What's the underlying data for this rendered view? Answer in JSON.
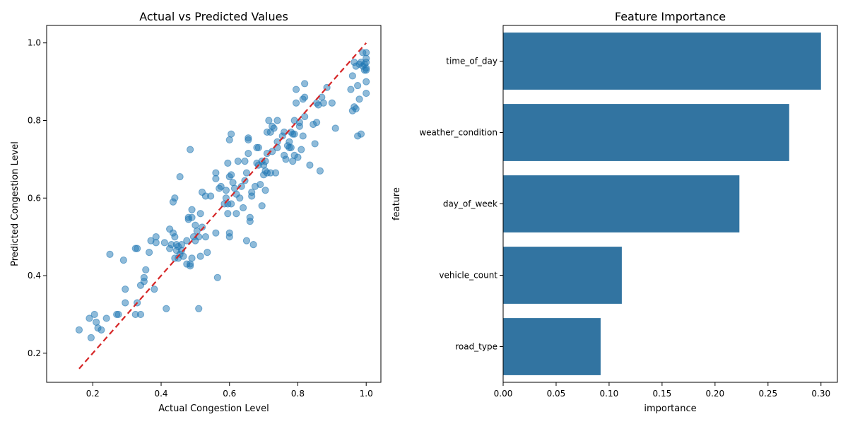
{
  "chart_data": [
    {
      "type": "scatter",
      "title": "Actual vs Predicted Values",
      "xlabel": "Actual Congestion Level",
      "ylabel": "Predicted Congestion Level",
      "xlim": [
        0.065,
        1.043
      ],
      "ylim": [
        0.125,
        1.045
      ],
      "xticks": [
        "0.2",
        "0.4",
        "0.6",
        "0.8",
        "1.0"
      ],
      "yticks": [
        "0.2",
        "0.4",
        "0.6",
        "0.8",
        "1.0"
      ],
      "grid": false,
      "point_color": "#1f77b4",
      "reference_line": {
        "x": [
          0.16,
          1.0
        ],
        "y": [
          0.16,
          1.0
        ],
        "color": "#d62728",
        "style": "dashed"
      },
      "points": [
        [
          0.16,
          0.26
        ],
        [
          0.19,
          0.29
        ],
        [
          0.195,
          0.24
        ],
        [
          0.205,
          0.3
        ],
        [
          0.21,
          0.28
        ],
        [
          0.215,
          0.265
        ],
        [
          0.225,
          0.26
        ],
        [
          0.24,
          0.29
        ],
        [
          0.25,
          0.455
        ],
        [
          0.27,
          0.3
        ],
        [
          0.275,
          0.3
        ],
        [
          0.29,
          0.44
        ],
        [
          0.295,
          0.365
        ],
        [
          0.295,
          0.33
        ],
        [
          0.325,
          0.47
        ],
        [
          0.33,
          0.47
        ],
        [
          0.33,
          0.33
        ],
        [
          0.325,
          0.3
        ],
        [
          0.34,
          0.3
        ],
        [
          0.34,
          0.375
        ],
        [
          0.35,
          0.395
        ],
        [
          0.35,
          0.385
        ],
        [
          0.355,
          0.415
        ],
        [
          0.365,
          0.46
        ],
        [
          0.37,
          0.49
        ],
        [
          0.38,
          0.365
        ],
        [
          0.385,
          0.5
        ],
        [
          0.385,
          0.485
        ],
        [
          0.41,
          0.485
        ],
        [
          0.415,
          0.315
        ],
        [
          0.425,
          0.52
        ],
        [
          0.425,
          0.47
        ],
        [
          0.43,
          0.48
        ],
        [
          0.435,
          0.59
        ],
        [
          0.435,
          0.51
        ],
        [
          0.44,
          0.6
        ],
        [
          0.44,
          0.5
        ],
        [
          0.44,
          0.445
        ],
        [
          0.445,
          0.48
        ],
        [
          0.445,
          0.465
        ],
        [
          0.45,
          0.475
        ],
        [
          0.45,
          0.445
        ],
        [
          0.455,
          0.655
        ],
        [
          0.455,
          0.455
        ],
        [
          0.46,
          0.48
        ],
        [
          0.46,
          0.465
        ],
        [
          0.465,
          0.45
        ],
        [
          0.475,
          0.49
        ],
        [
          0.475,
          0.43
        ],
        [
          0.48,
          0.55
        ],
        [
          0.48,
          0.545
        ],
        [
          0.485,
          0.725
        ],
        [
          0.485,
          0.43
        ],
        [
          0.485,
          0.425
        ],
        [
          0.49,
          0.57
        ],
        [
          0.49,
          0.55
        ],
        [
          0.49,
          0.445
        ],
        [
          0.495,
          0.5
        ],
        [
          0.5,
          0.53
        ],
        [
          0.5,
          0.49
        ],
        [
          0.505,
          0.515
        ],
        [
          0.51,
          0.5
        ],
        [
          0.51,
          0.315
        ],
        [
          0.515,
          0.56
        ],
        [
          0.515,
          0.45
        ],
        [
          0.52,
          0.615
        ],
        [
          0.52,
          0.525
        ],
        [
          0.53,
          0.605
        ],
        [
          0.53,
          0.5
        ],
        [
          0.535,
          0.46
        ],
        [
          0.545,
          0.605
        ],
        [
          0.56,
          0.665
        ],
        [
          0.56,
          0.65
        ],
        [
          0.56,
          0.51
        ],
        [
          0.565,
          0.395
        ],
        [
          0.57,
          0.625
        ],
        [
          0.575,
          0.63
        ],
        [
          0.585,
          0.585
        ],
        [
          0.59,
          0.62
        ],
        [
          0.59,
          0.6
        ],
        [
          0.595,
          0.69
        ],
        [
          0.595,
          0.56
        ],
        [
          0.595,
          0.585
        ],
        [
          0.6,
          0.75
        ],
        [
          0.6,
          0.655
        ],
        [
          0.6,
          0.51
        ],
        [
          0.6,
          0.5
        ],
        [
          0.605,
          0.765
        ],
        [
          0.605,
          0.66
        ],
        [
          0.605,
          0.585
        ],
        [
          0.61,
          0.64
        ],
        [
          0.615,
          0.625
        ],
        [
          0.62,
          0.61
        ],
        [
          0.62,
          0.56
        ],
        [
          0.625,
          0.695
        ],
        [
          0.63,
          0.6
        ],
        [
          0.635,
          0.63
        ],
        [
          0.64,
          0.575
        ],
        [
          0.645,
          0.695
        ],
        [
          0.645,
          0.645
        ],
        [
          0.65,
          0.665
        ],
        [
          0.65,
          0.49
        ],
        [
          0.655,
          0.755
        ],
        [
          0.655,
          0.75
        ],
        [
          0.655,
          0.715
        ],
        [
          0.66,
          0.55
        ],
        [
          0.66,
          0.54
        ],
        [
          0.665,
          0.615
        ],
        [
          0.665,
          0.605
        ],
        [
          0.67,
          0.48
        ],
        [
          0.675,
          0.63
        ],
        [
          0.68,
          0.73
        ],
        [
          0.68,
          0.69
        ],
        [
          0.685,
          0.685
        ],
        [
          0.685,
          0.73
        ],
        [
          0.69,
          0.635
        ],
        [
          0.695,
          0.695
        ],
        [
          0.695,
          0.58
        ],
        [
          0.7,
          0.66
        ],
        [
          0.7,
          0.685
        ],
        [
          0.705,
          0.62
        ],
        [
          0.705,
          0.67
        ],
        [
          0.705,
          0.695
        ],
        [
          0.71,
          0.77
        ],
        [
          0.71,
          0.715
        ],
        [
          0.71,
          0.665
        ],
        [
          0.715,
          0.8
        ],
        [
          0.72,
          0.77
        ],
        [
          0.72,
          0.665
        ],
        [
          0.725,
          0.785
        ],
        [
          0.725,
          0.72
        ],
        [
          0.73,
          0.78
        ],
        [
          0.735,
          0.665
        ],
        [
          0.74,
          0.8
        ],
        [
          0.74,
          0.745
        ],
        [
          0.74,
          0.73
        ],
        [
          0.755,
          0.76
        ],
        [
          0.76,
          0.77
        ],
        [
          0.76,
          0.71
        ],
        [
          0.765,
          0.7
        ],
        [
          0.77,
          0.735
        ],
        [
          0.775,
          0.745
        ],
        [
          0.775,
          0.73
        ],
        [
          0.78,
          0.77
        ],
        [
          0.78,
          0.73
        ],
        [
          0.785,
          0.765
        ],
        [
          0.785,
          0.695
        ],
        [
          0.79,
          0.8
        ],
        [
          0.79,
          0.765
        ],
        [
          0.79,
          0.71
        ],
        [
          0.795,
          0.88
        ],
        [
          0.795,
          0.845
        ],
        [
          0.8,
          0.705
        ],
        [
          0.805,
          0.795
        ],
        [
          0.805,
          0.785
        ],
        [
          0.81,
          0.725
        ],
        [
          0.815,
          0.855
        ],
        [
          0.815,
          0.76
        ],
        [
          0.82,
          0.895
        ],
        [
          0.82,
          0.86
        ],
        [
          0.82,
          0.81
        ],
        [
          0.835,
          0.685
        ],
        [
          0.845,
          0.79
        ],
        [
          0.85,
          0.74
        ],
        [
          0.855,
          0.845
        ],
        [
          0.855,
          0.795
        ],
        [
          0.86,
          0.84
        ],
        [
          0.865,
          0.67
        ],
        [
          0.87,
          0.86
        ],
        [
          0.875,
          0.845
        ],
        [
          0.885,
          0.885
        ],
        [
          0.9,
          0.845
        ],
        [
          0.91,
          0.78
        ],
        [
          0.955,
          0.88
        ],
        [
          0.96,
          0.915
        ],
        [
          0.96,
          0.825
        ],
        [
          0.965,
          0.95
        ],
        [
          0.965,
          0.835
        ],
        [
          0.97,
          0.83
        ],
        [
          0.97,
          0.94
        ],
        [
          0.975,
          0.89
        ],
        [
          0.975,
          0.76
        ],
        [
          0.98,
          0.945
        ],
        [
          0.98,
          0.855
        ],
        [
          0.985,
          0.765
        ],
        [
          0.985,
          0.95
        ],
        [
          0.99,
          0.975
        ],
        [
          0.99,
          0.94
        ],
        [
          0.995,
          0.945
        ],
        [
          0.995,
          0.93
        ],
        [
          1.0,
          0.975
        ],
        [
          1.0,
          0.96
        ],
        [
          1.0,
          0.95
        ],
        [
          1.0,
          0.935
        ],
        [
          1.0,
          0.93
        ],
        [
          1.0,
          0.9
        ],
        [
          1.0,
          0.87
        ]
      ]
    },
    {
      "type": "bar",
      "orientation": "horizontal",
      "title": "Feature Importance",
      "xlabel": "importance",
      "ylabel": "feature",
      "categories": [
        "time_of_day",
        "weather_condition",
        "day_of_week",
        "vehicle_count",
        "road_type"
      ],
      "values": [
        0.3,
        0.27,
        0.223,
        0.112,
        0.092
      ],
      "xlim": [
        0,
        0.3155
      ],
      "xticks": [
        "0.00",
        "0.05",
        "0.10",
        "0.15",
        "0.20",
        "0.25",
        "0.30"
      ],
      "grid": false,
      "bar_color": "#3274a1"
    }
  ]
}
